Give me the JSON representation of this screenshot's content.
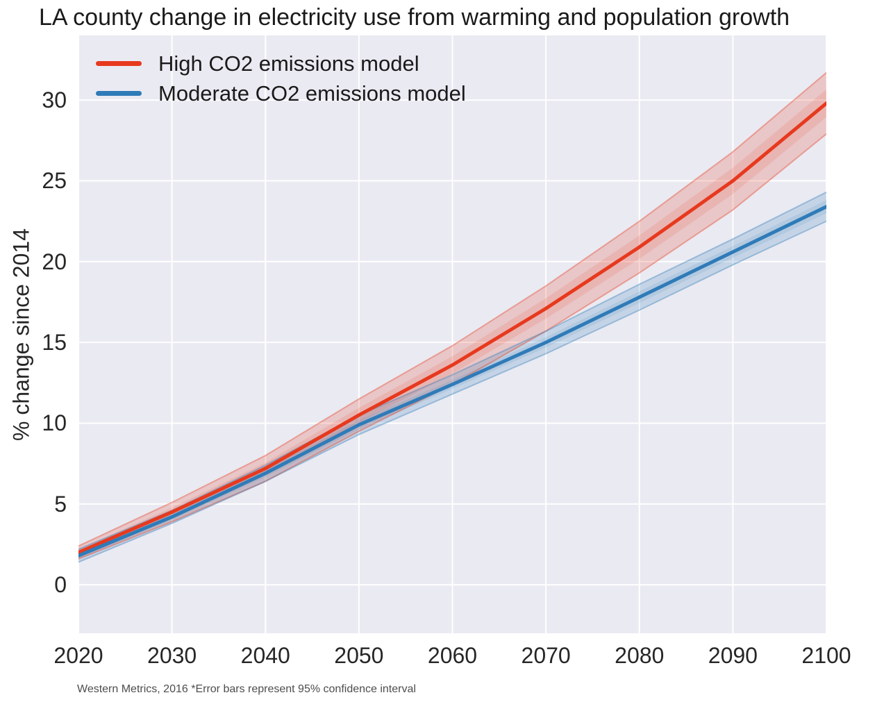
{
  "title": "LA county change in electricity use from warming and population growth",
  "y_axis_label": "% change since 2014",
  "footer": "Western Metrics, 2016 *Error bars represent 95% confidence interval",
  "legend": {
    "items": [
      {
        "label": "High CO2 emissions model",
        "color": "#e7391e"
      },
      {
        "label": "Moderate CO2 emissions model",
        "color": "#2f7bb8"
      }
    ]
  },
  "colors": {
    "plot_background": "#eaeaf2",
    "grid": "#ffffff",
    "tick_label": "#262626",
    "title": "#1a1a1a",
    "footer": "#4d4d4d",
    "series_high": "#e7391e",
    "series_moderate": "#2f7bb8"
  },
  "chart_data": {
    "type": "line",
    "title": "LA county change in electricity use from warming and population growth",
    "xlabel": "",
    "ylabel": "% change since 2014",
    "x": [
      2020,
      2030,
      2040,
      2050,
      2060,
      2070,
      2080,
      2090,
      2100
    ],
    "series": [
      {
        "name": "High CO2 emissions model",
        "color": "#e7391e",
        "values": [
          2.0,
          4.5,
          7.2,
          10.5,
          13.6,
          17.1,
          20.9,
          25.0,
          29.8
        ],
        "ci_low": [
          1.6,
          3.9,
          6.4,
          9.5,
          12.4,
          15.7,
          19.3,
          23.2,
          27.9
        ],
        "ci_high": [
          2.4,
          5.1,
          8.0,
          11.5,
          14.8,
          18.5,
          22.5,
          26.8,
          31.7
        ]
      },
      {
        "name": "Moderate CO2 emissions model",
        "color": "#2f7bb8",
        "values": [
          1.8,
          4.2,
          6.9,
          9.9,
          12.4,
          15.0,
          17.8,
          20.6,
          23.4
        ],
        "ci_low": [
          1.4,
          3.8,
          6.4,
          9.3,
          11.8,
          14.3,
          17.0,
          19.8,
          22.5
        ],
        "ci_high": [
          2.2,
          4.6,
          7.4,
          10.5,
          13.0,
          15.7,
          18.6,
          21.4,
          24.3
        ]
      }
    ],
    "xticks": [
      2020,
      2030,
      2040,
      2050,
      2060,
      2070,
      2080,
      2090,
      2100
    ],
    "yticks": [
      0,
      5,
      10,
      15,
      20,
      25,
      30
    ],
    "xlim": [
      2020,
      2100
    ],
    "ylim": [
      -3,
      34
    ],
    "grid": true,
    "legend_position": "upper left",
    "band_note": "shaded bands are 95% confidence intervals"
  }
}
